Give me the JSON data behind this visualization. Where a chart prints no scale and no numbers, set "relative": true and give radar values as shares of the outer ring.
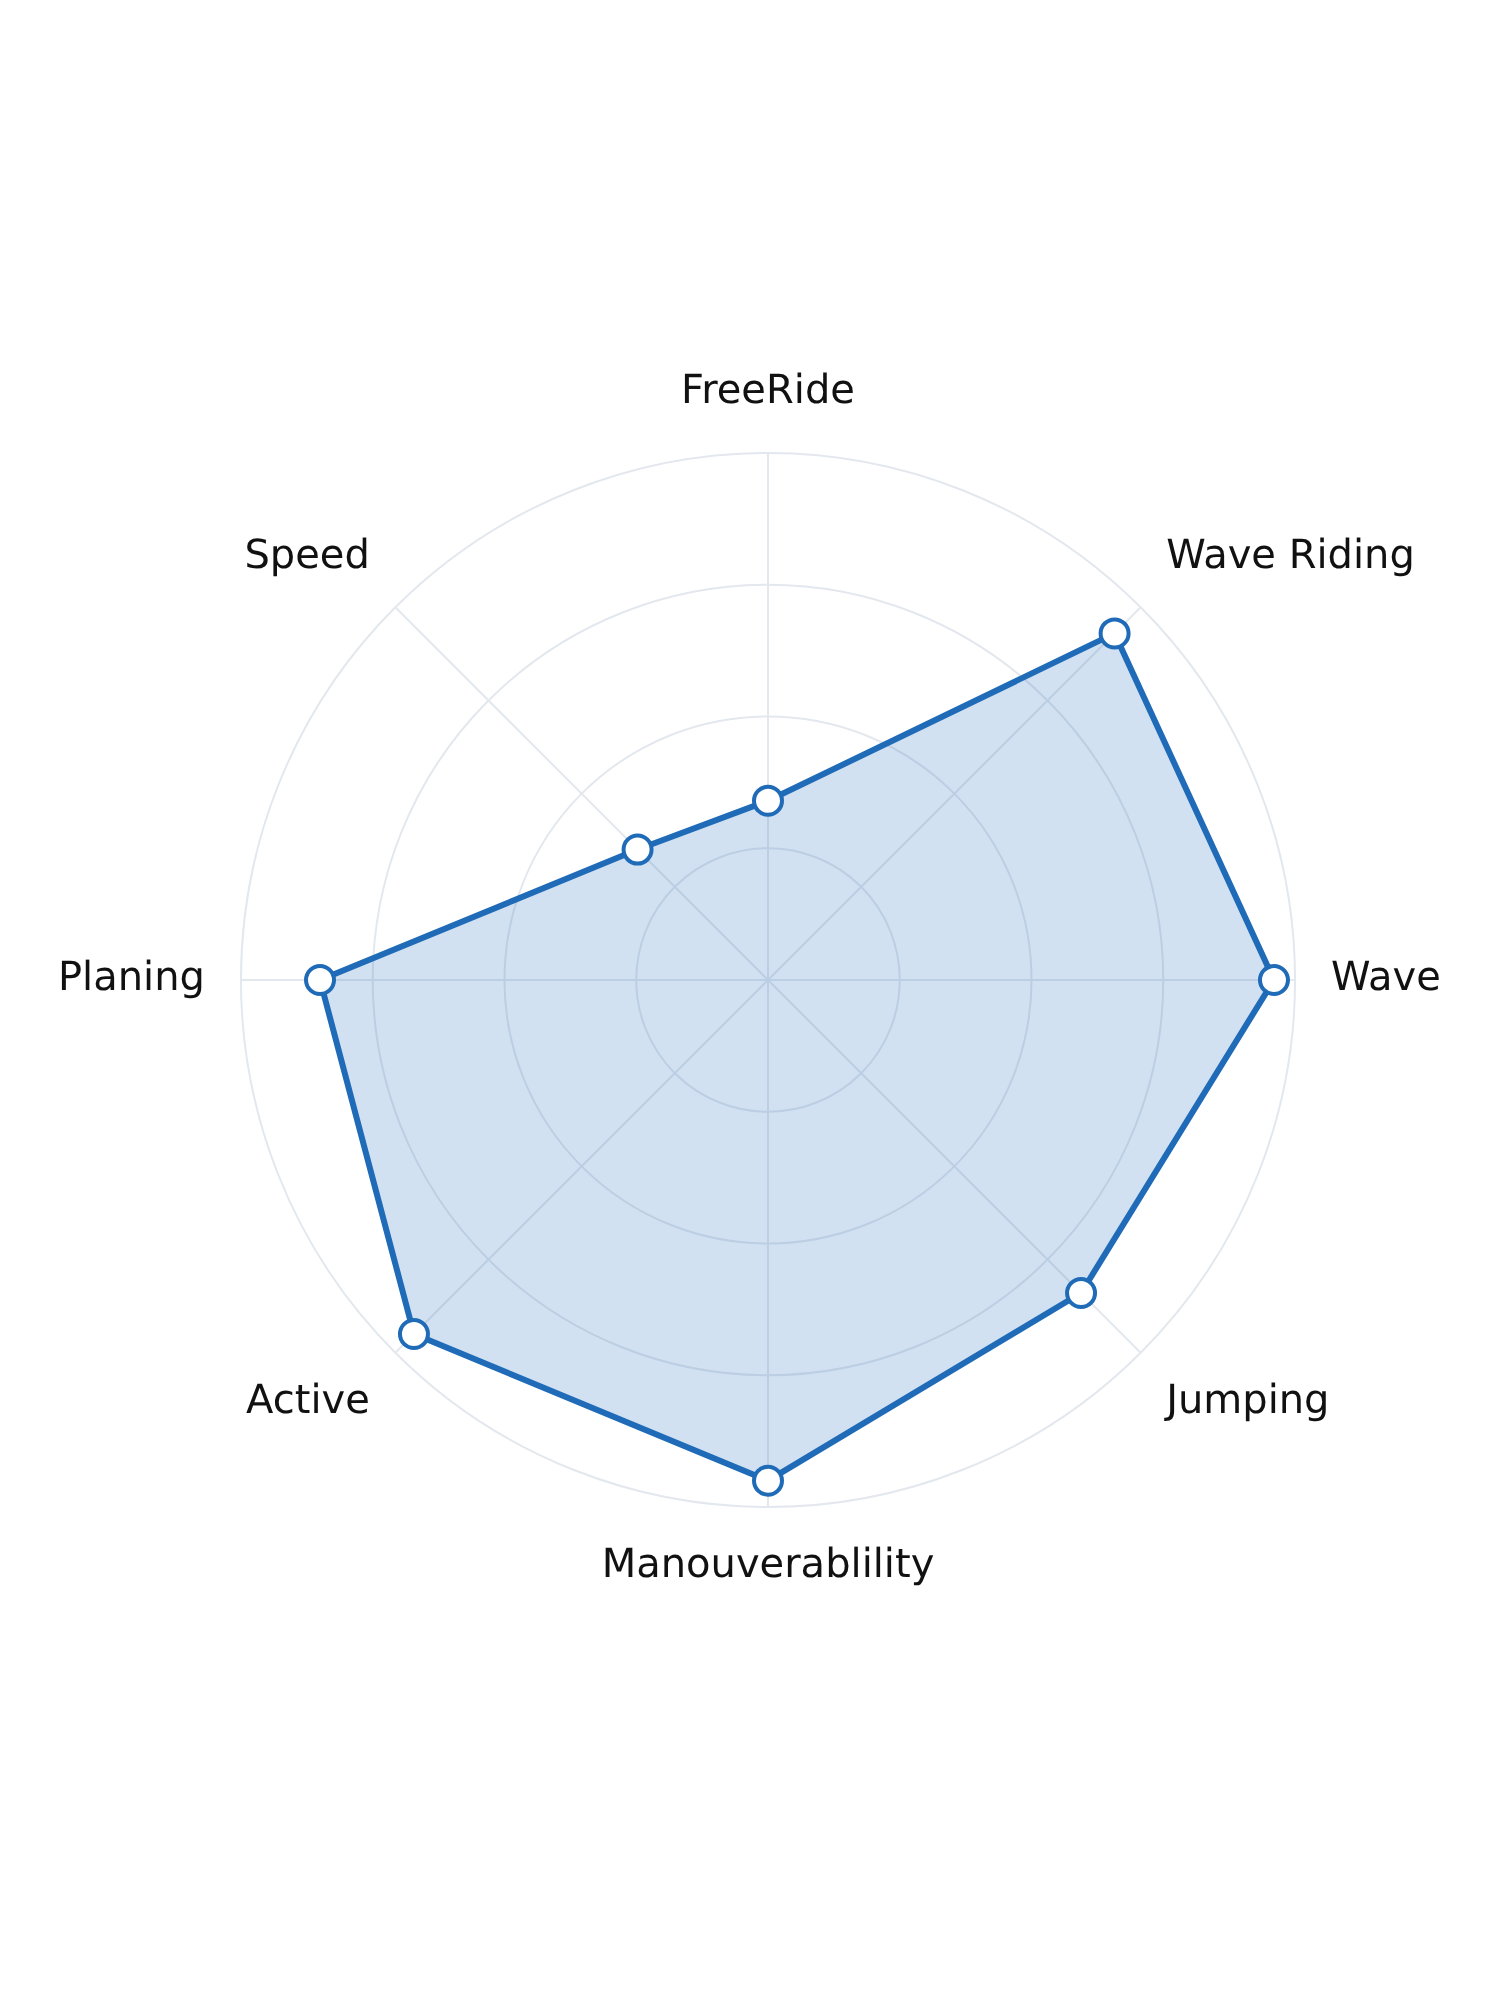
{
  "chart_data": {
    "type": "radar",
    "relative": true,
    "categories": [
      "FreeRide",
      "Wave Riding",
      "Wave",
      "Jumping",
      "Manouverablility",
      "Active",
      "Planing",
      "Speed"
    ],
    "series": [
      {
        "color": "#1f6bb8",
        "values": [
          0.34,
          0.93,
          0.96,
          0.84,
          0.95,
          0.95,
          0.85,
          0.35
        ]
      }
    ],
    "grid": true,
    "marker": "circle",
    "legend": false
  }
}
